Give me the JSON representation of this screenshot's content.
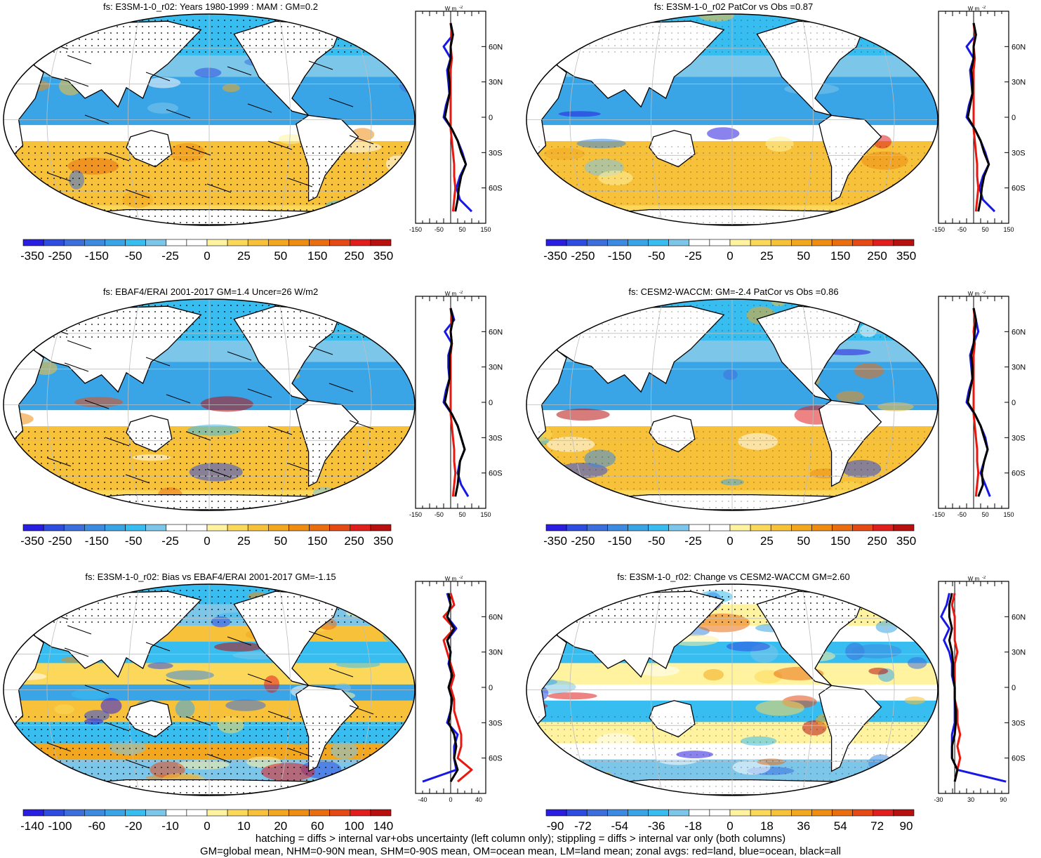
{
  "footer": {
    "line1": "hatching = diffs > internal var+obs uncertainty (left column only); stippling = diffs > internal var only (both columns)",
    "line2": "GM=global mean, NHM=0-90N mean, SHM=0-90S mean, OM=ocean mean, LM=land mean; zonal avgs: red=land, blue=ocean, black=all"
  },
  "colors": {
    "land_line": "#e8170f",
    "ocean_line": "#1818e6",
    "all_line": "#000000",
    "palette": [
      "#2a1ee0",
      "#2e4de0",
      "#3c6fdc",
      "#3d8be0",
      "#3aa5e6",
      "#37bdf0",
      "#7cc6ea",
      "#ffffff",
      "#ffffff",
      "#fff3a0",
      "#fcd85a",
      "#f7c13a",
      "#f3a71e",
      "#ef8c12",
      "#ea6e10",
      "#e64a14",
      "#e01e1e",
      "#b80f0f"
    ]
  },
  "panels": [
    {
      "id": "p1",
      "title": "fs: E3SM-1-0_r02: Years 1980-1999 : MAM : GM=0.2",
      "colorbar_ticks": [
        "-350",
        "-250",
        "-150",
        "-50",
        "-25",
        "0",
        "25",
        "50",
        "150",
        "250",
        "350"
      ],
      "zonal_xticks": [
        "-150",
        "-50",
        "50",
        "150"
      ],
      "zonal_xlim": [
        -150,
        150
      ],
      "zonal_unit": "W m",
      "lat_ticks": [
        "60N",
        "30N",
        "0",
        "30S",
        "60S"
      ],
      "hatching": true,
      "stippling": true,
      "chart_data": {
        "type": "line",
        "lat": [
          80,
          70,
          60,
          50,
          40,
          30,
          20,
          10,
          0,
          -10,
          -20,
          -30,
          -40,
          -50,
          -60,
          -70,
          -80
        ],
        "series": [
          {
            "values": [
              0,
              10,
              -30,
              0,
              -15,
              -10,
              -5,
              -20,
              -30,
              5,
              30,
              50,
              65,
              40,
              25,
              40,
              90
            ]
          },
          {
            "values": [
              0,
              5,
              0,
              5,
              0,
              0,
              0,
              0,
              0,
              0,
              5,
              10,
              15,
              15,
              20,
              15,
              10
            ]
          },
          {
            "values": [
              0,
              10,
              0,
              0,
              -10,
              -5,
              -5,
              -15,
              -25,
              5,
              30,
              45,
              65,
              45,
              35,
              30,
              20
            ]
          }
        ]
      },
      "map_style": "clim"
    },
    {
      "id": "p2",
      "title": "fs: E3SM-1-0_r02 PatCor vs Obs =0.87",
      "colorbar_ticks": [
        "-350",
        "-250",
        "-150",
        "-50",
        "-25",
        "0",
        "25",
        "50",
        "150",
        "250",
        "350"
      ],
      "zonal_xticks": [
        "-150",
        "-50",
        "50",
        "150"
      ],
      "zonal_xlim": [
        -150,
        150
      ],
      "zonal_unit": "W m",
      "lat_ticks": [
        "60N",
        "30N",
        "0",
        "30S",
        "60S"
      ],
      "hatching": false,
      "stippling": true,
      "chart_data": {
        "type": "line",
        "lat": [
          80,
          70,
          60,
          50,
          40,
          30,
          20,
          10,
          0,
          -10,
          -20,
          -30,
          -40,
          -50,
          -60,
          -70,
          -80
        ],
        "series": [
          {
            "values": [
              0,
              10,
              -30,
              0,
              -15,
              -10,
              -5,
              -20,
              -30,
              5,
              30,
              50,
              65,
              40,
              25,
              40,
              90
            ]
          },
          {
            "values": [
              0,
              5,
              0,
              5,
              0,
              0,
              0,
              0,
              0,
              0,
              5,
              10,
              15,
              15,
              20,
              15,
              10
            ]
          },
          {
            "values": [
              0,
              10,
              0,
              0,
              -10,
              -5,
              -5,
              -15,
              -25,
              5,
              30,
              45,
              65,
              45,
              35,
              30,
              20
            ]
          }
        ]
      },
      "map_style": "clim"
    },
    {
      "id": "p3",
      "title": "fs: EBAF4/ERAI 2001-2017 GM=1.4 Uncer=26 W/m2",
      "colorbar_ticks": [
        "-350",
        "-250",
        "-150",
        "-50",
        "-25",
        "0",
        "25",
        "50",
        "150",
        "250",
        "350"
      ],
      "zonal_xticks": [
        "-150",
        "-50",
        "50",
        "150"
      ],
      "zonal_xlim": [
        -150,
        150
      ],
      "zonal_unit": "W m",
      "lat_ticks": [
        "60N",
        "30N",
        "0",
        "30S",
        "60S"
      ],
      "hatching": true,
      "stippling": true,
      "chart_data": {
        "type": "line",
        "lat": [
          80,
          70,
          60,
          50,
          40,
          30,
          20,
          10,
          0,
          -10,
          -20,
          -30,
          -40,
          -50,
          -60,
          -70,
          -80
        ],
        "series": [
          {
            "values": [
              0,
              15,
              -25,
              5,
              -10,
              -10,
              -5,
              -20,
              -30,
              5,
              30,
              45,
              60,
              40,
              30,
              45,
              75
            ]
          },
          {
            "values": [
              0,
              5,
              0,
              5,
              0,
              0,
              0,
              0,
              0,
              0,
              5,
              10,
              15,
              15,
              20,
              15,
              10
            ]
          },
          {
            "values": [
              0,
              10,
              0,
              5,
              -5,
              -5,
              -5,
              -15,
              -25,
              5,
              30,
              45,
              60,
              40,
              35,
              30,
              20
            ]
          }
        ]
      },
      "map_style": "clim"
    },
    {
      "id": "p4",
      "title": "fs: CESM2-WACCM: GM=-2.4 PatCor vs Obs =0.86",
      "colorbar_ticks": [
        "-350",
        "-250",
        "-150",
        "-50",
        "-25",
        "0",
        "25",
        "50",
        "150",
        "250",
        "350"
      ],
      "zonal_xticks": [
        "-150",
        "-50",
        "50",
        "150"
      ],
      "zonal_xlim": [
        -150,
        150
      ],
      "zonal_unit": "W m",
      "lat_ticks": [
        "60N",
        "30N",
        "0",
        "30S",
        "60S"
      ],
      "hatching": false,
      "stippling": true,
      "chart_data": {
        "type": "line",
        "lat": [
          80,
          70,
          60,
          50,
          40,
          30,
          20,
          10,
          0,
          -10,
          -20,
          -30,
          -40,
          -50,
          -60,
          -70,
          -80
        ],
        "series": [
          {
            "values": [
              0,
              10,
              20,
              0,
              -15,
              -10,
              -5,
              -20,
              -30,
              5,
              30,
              50,
              60,
              45,
              30,
              50,
              70
            ]
          },
          {
            "values": [
              0,
              5,
              0,
              5,
              0,
              0,
              0,
              0,
              0,
              0,
              5,
              10,
              15,
              15,
              20,
              15,
              10
            ]
          },
          {
            "values": [
              0,
              10,
              5,
              0,
              -10,
              -5,
              -5,
              -15,
              -25,
              5,
              30,
              45,
              60,
              45,
              35,
              40,
              20
            ]
          }
        ]
      },
      "map_style": "clim"
    },
    {
      "id": "p5",
      "title": "fs: E3SM-1-0_r02: Bias vs EBAF4/ERAI 2001-2017 GM=-1.15",
      "colorbar_ticks": [
        "-140",
        "-100",
        "-60",
        "-20",
        "-10",
        "0",
        "10",
        "20",
        "60",
        "100",
        "140"
      ],
      "zonal_xticks": [
        "-40",
        "0",
        "40"
      ],
      "zonal_xlim": [
        -50,
        50
      ],
      "zonal_unit": "W m",
      "lat_ticks": [
        "60N",
        "30N",
        "0",
        "30S",
        "60S"
      ],
      "hatching": true,
      "stippling": true,
      "chart_data": {
        "type": "line",
        "lat": [
          80,
          70,
          60,
          50,
          40,
          30,
          20,
          10,
          0,
          -10,
          -20,
          -30,
          -40,
          -50,
          -60,
          -70,
          -80
        ],
        "series": [
          {
            "values": [
              -5,
              0,
              -5,
              8,
              -5,
              0,
              -3,
              2,
              -3,
              2,
              0,
              -5,
              10,
              5,
              5,
              8,
              -40
            ]
          },
          {
            "values": [
              0,
              5,
              -10,
              5,
              -10,
              -5,
              0,
              5,
              0,
              5,
              5,
              10,
              15,
              15,
              10,
              30,
              10
            ]
          },
          {
            "values": [
              -3,
              0,
              -5,
              5,
              -5,
              0,
              -2,
              2,
              -3,
              2,
              0,
              -3,
              5,
              8,
              5,
              10,
              0
            ]
          }
        ]
      },
      "map_style": "bias"
    },
    {
      "id": "p6",
      "title": "fs: E3SM-1-0_r02: Change vs CESM2-WACCM GM=2.60",
      "colorbar_ticks": [
        "-90",
        "-72",
        "-54",
        "-36",
        "-18",
        "0",
        "18",
        "36",
        "54",
        "72",
        "90"
      ],
      "zonal_xticks": [
        "-30",
        "30",
        "90"
      ],
      "zonal_xlim": [
        -30,
        100
      ],
      "zonal_unit": "W m",
      "lat_ticks": [
        "60N",
        "30N",
        "0",
        "30S",
        "60S"
      ],
      "hatching": false,
      "stippling": true,
      "chart_data": {
        "type": "line",
        "lat": [
          80,
          70,
          60,
          50,
          40,
          30,
          20,
          10,
          0,
          -10,
          -20,
          -30,
          -40,
          -50,
          -60,
          -70,
          -80
        ],
        "series": [
          {
            "values": [
              -10,
              -15,
              -25,
              -10,
              -20,
              -10,
              -5,
              -5,
              0,
              0,
              0,
              0,
              -5,
              -5,
              -5,
              5,
              95
            ]
          },
          {
            "values": [
              0,
              -5,
              0,
              0,
              0,
              5,
              0,
              0,
              0,
              0,
              5,
              5,
              10,
              5,
              10,
              5,
              0
            ]
          },
          {
            "values": [
              -5,
              -10,
              -10,
              -5,
              -10,
              -5,
              -3,
              -3,
              0,
              0,
              2,
              2,
              0,
              -5,
              -5,
              5,
              0
            ]
          }
        ]
      },
      "map_style": "change"
    }
  ]
}
